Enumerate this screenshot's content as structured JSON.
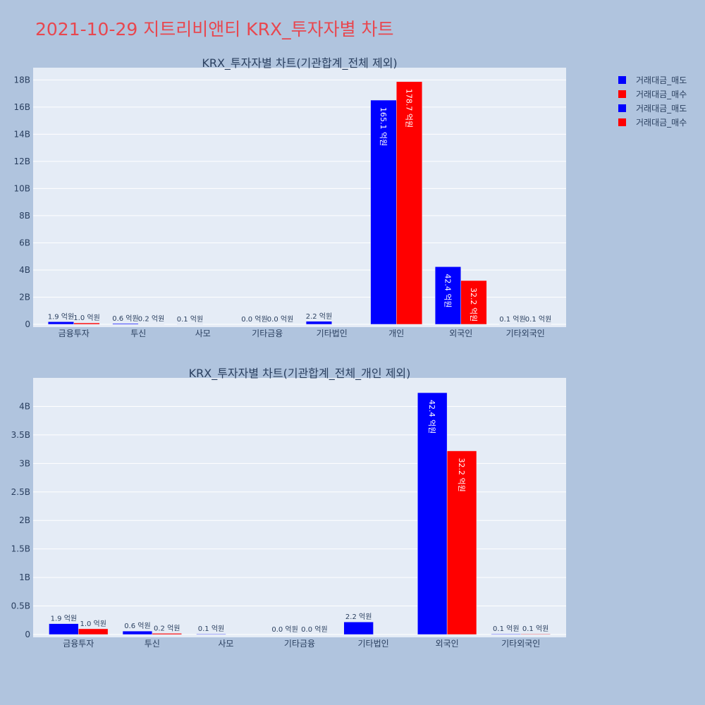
{
  "title": "2021-10-29 지트리비앤티 KRX_투자자별 차트",
  "legend": [
    {
      "name": "거래대금_매도",
      "color": "#0000ff"
    },
    {
      "name": "거래대금_매수",
      "color": "#ff0000"
    },
    {
      "name": "거래대금_매도",
      "color": "#0000ff"
    },
    {
      "name": "거래대금_매수",
      "color": "#ff0000"
    }
  ],
  "chart_data": [
    {
      "type": "bar",
      "title": "KRX_투자자별 차트(기관합계_전체 제외)",
      "categories": [
        "금융투자",
        "투신",
        "사모",
        "기타금융",
        "기타법인",
        "개인",
        "외국인",
        "기타외국인"
      ],
      "ylim": [
        0,
        18.9
      ],
      "yticks": [
        0,
        2,
        4,
        6,
        8,
        10,
        12,
        14,
        16,
        18
      ],
      "ytick_labels": [
        "0",
        "2B",
        "4B",
        "6B",
        "8B",
        "10B",
        "12B",
        "14B",
        "16B",
        "18B"
      ],
      "series": [
        {
          "name": "거래대금_매도",
          "color": "#0000ff",
          "values": [
            0.19,
            0.06,
            0.01,
            0.0,
            0.22,
            16.51,
            4.24,
            0.01
          ],
          "labels": [
            "1.9 억원",
            "0.6 억원",
            "0.1 억원",
            "0.0 억원",
            "2.2 억원",
            "165.1 억원",
            "42.4 억원",
            "0.1 억원"
          ]
        },
        {
          "name": "거래대금_매수",
          "color": "#ff0000",
          "values": [
            0.1,
            0.02,
            0.0,
            0.0,
            0.0,
            17.87,
            3.22,
            0.01
          ],
          "labels": [
            "1.0 억원",
            "0.2 억원",
            "",
            "0.0 억원",
            "",
            "178.7 억원",
            "32.2 억원",
            "0.1 억원"
          ]
        }
      ]
    },
    {
      "type": "bar",
      "title": "KRX_투자자별 차트(기관합계_전체_개인 제외)",
      "categories": [
        "금융투자",
        "투신",
        "사모",
        "기타금융",
        "기타법인",
        "외국인",
        "기타외국인"
      ],
      "ylim": [
        0,
        4.5
      ],
      "yticks": [
        0,
        0.5,
        1,
        1.5,
        2,
        2.5,
        3,
        3.5,
        4
      ],
      "ytick_labels": [
        "0",
        "0.5B",
        "1B",
        "1.5B",
        "2B",
        "2.5B",
        "3B",
        "3.5B",
        "4B"
      ],
      "series": [
        {
          "name": "거래대금_매도",
          "color": "#0000ff",
          "values": [
            0.19,
            0.06,
            0.01,
            0.0,
            0.22,
            4.24,
            0.01
          ],
          "labels": [
            "1.9 억원",
            "0.6 억원",
            "0.1 억원",
            "0.0 억원",
            "2.2 억원",
            "42.4 억원",
            "0.1 억원"
          ]
        },
        {
          "name": "거래대금_매수",
          "color": "#ff0000",
          "values": [
            0.1,
            0.02,
            0.0,
            0.0,
            0.0,
            3.22,
            0.01
          ],
          "labels": [
            "1.0 억원",
            "0.2 억원",
            "",
            "0.0 억원",
            "",
            "32.2 억원",
            "0.1 억원"
          ]
        }
      ]
    }
  ]
}
